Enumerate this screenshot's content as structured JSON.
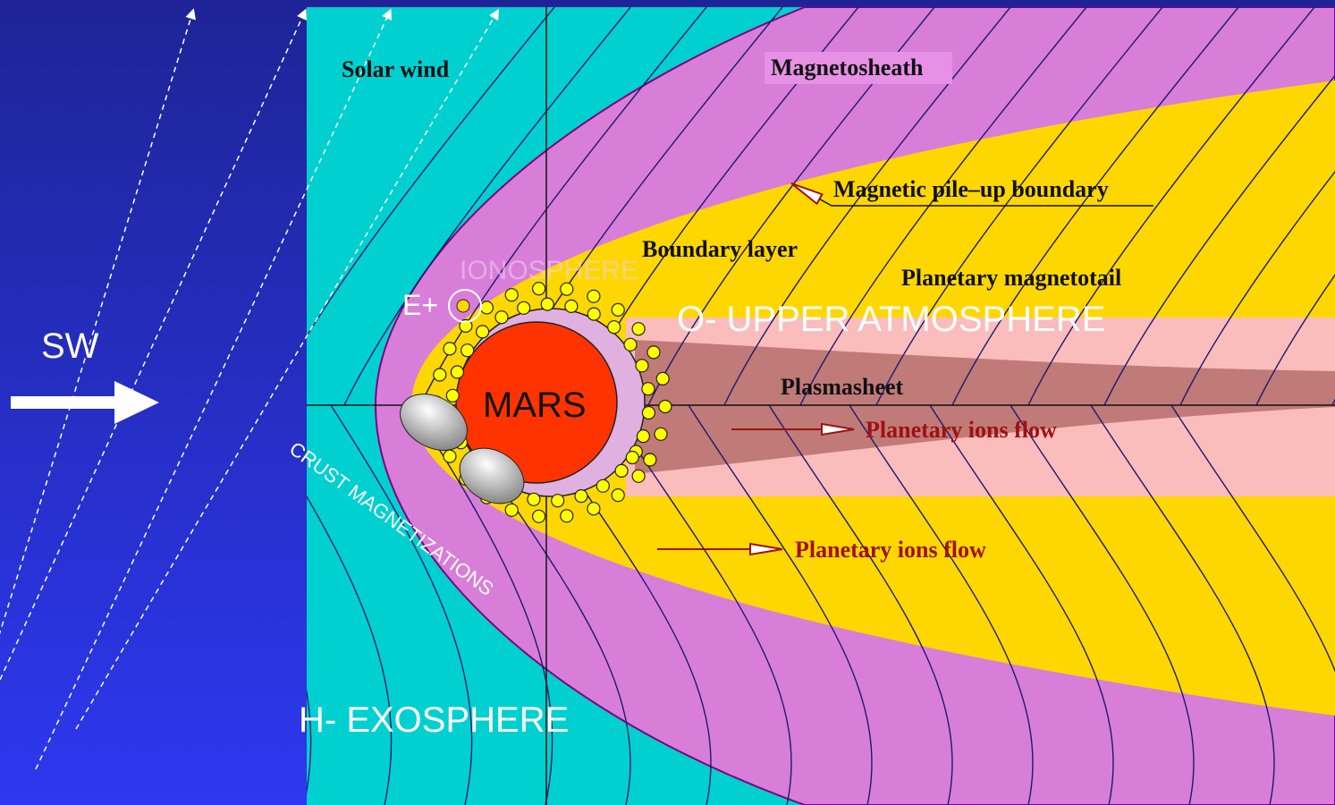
{
  "labels": {
    "solar_wind": "Solar wind",
    "magnetosheath": "Magnetosheath",
    "pileup_boundary": "Magnetic pile–up boundary",
    "boundary_layer": "Boundary layer",
    "magnetotail": "Planetary magnetotail",
    "ionosphere": "IONOSPHERE",
    "e_plus": "E+",
    "upper_atmosphere": "O- UPPER ATMOSPHERE",
    "sw": "SW",
    "mars": "MARS",
    "plasmasheet": "Plasmasheet",
    "ions_flow_upper": "Planetary ions flow",
    "ions_flow_lower": "Planetary ions flow",
    "crust": "CRUST MAGNETIZATIONS",
    "exosphere": "H- EXOSPHERE"
  }
}
